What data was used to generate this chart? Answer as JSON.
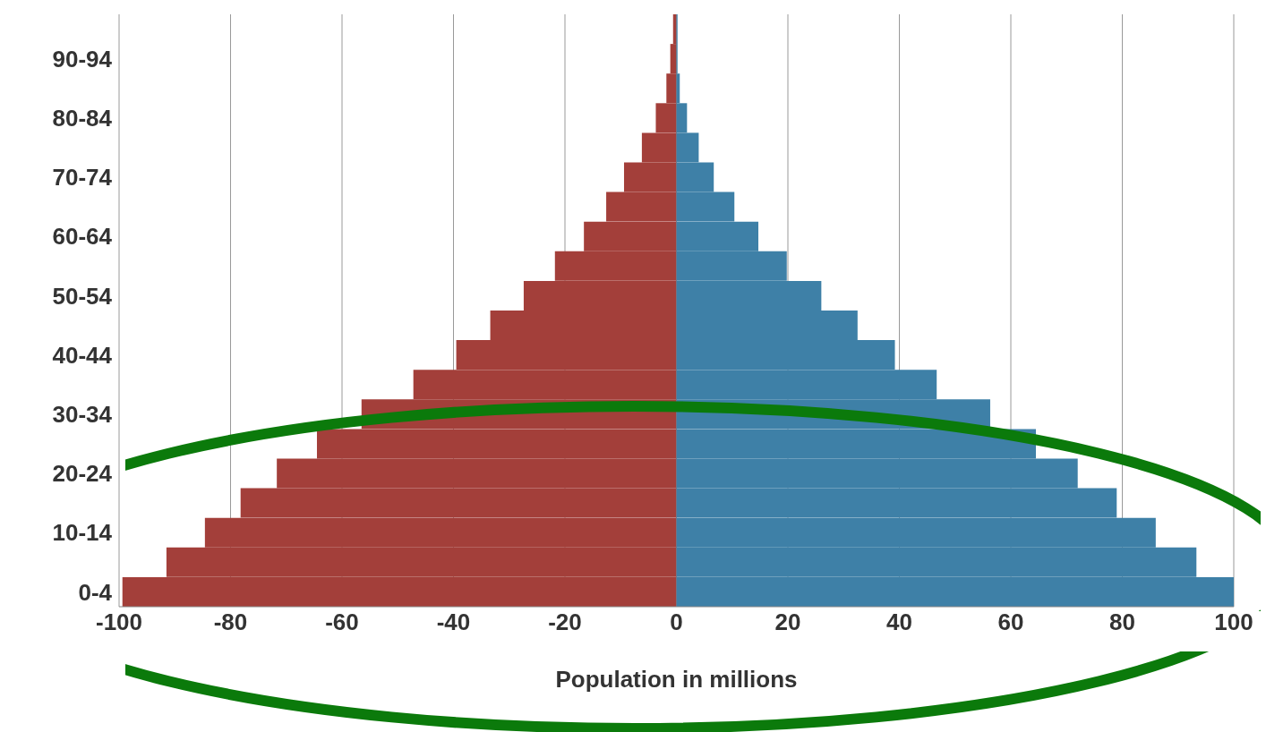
{
  "chart_data": {
    "type": "bar",
    "orientation": "horizontal",
    "stacked": true,
    "categories": [
      null,
      "90-94",
      null,
      "80-84",
      null,
      "70-74",
      null,
      "60-64",
      null,
      "50-54",
      null,
      "40-44",
      null,
      "30-34",
      null,
      "20-24",
      null,
      "10-14",
      null,
      "0-4"
    ],
    "series": [
      {
        "color": "#a33f3a",
        "values": [
          -0.6,
          -1.1,
          -1.8,
          -3.7,
          -6.2,
          -9.4,
          -12.6,
          -16.6,
          -21.8,
          -27.4,
          -33.4,
          -39.5,
          -47.2,
          -56.5,
          -64.5,
          -71.7,
          -78.2,
          -84.6,
          -91.5,
          -99.4
        ]
      },
      {
        "color": "#3e80a7",
        "values": [
          0.2,
          0.2,
          0.6,
          1.9,
          4,
          6.7,
          10.4,
          14.7,
          19.8,
          26,
          32.5,
          39.2,
          46.7,
          56.3,
          64.5,
          72,
          79,
          86,
          93.3,
          100
        ]
      }
    ],
    "xlim": [
      -100,
      100
    ],
    "xticks": [
      -100,
      -80,
      -60,
      -40,
      -20,
      0,
      20,
      40,
      60,
      80,
      100
    ],
    "xlabel": "Population in millions",
    "grid": "x",
    "legend": false
  }
}
